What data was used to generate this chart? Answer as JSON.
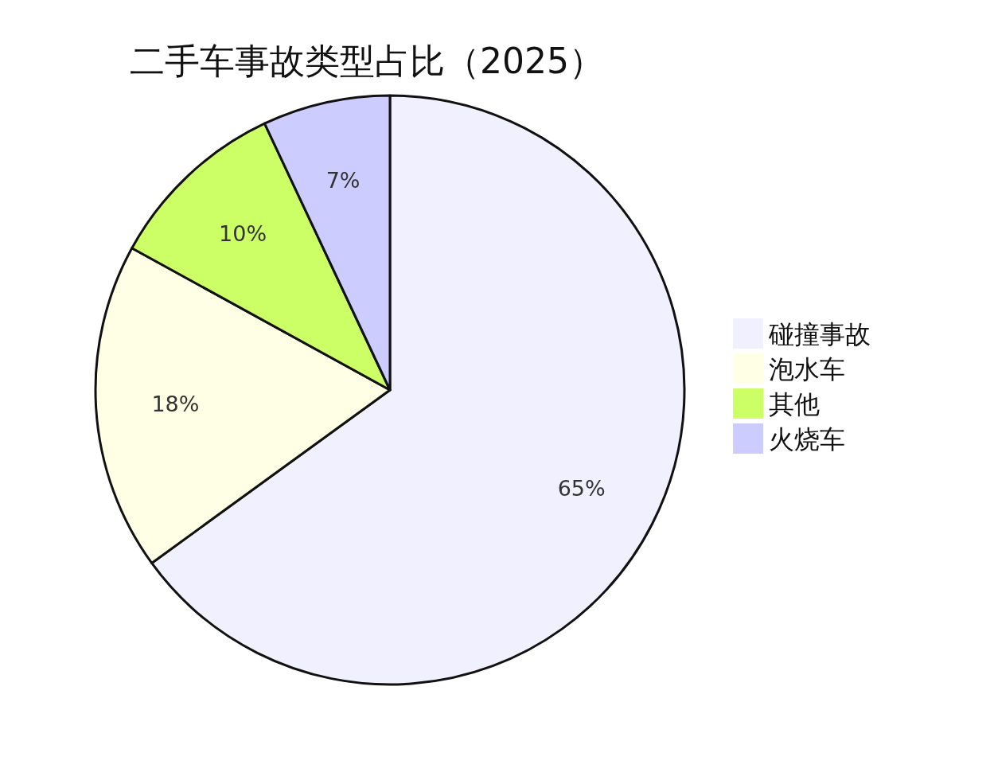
{
  "chart_data": {
    "type": "pie",
    "title": "二手车事故类型占比（2025）",
    "categories": [
      "碰撞事故",
      "泡水车",
      "其他",
      "火烧车"
    ],
    "values": [
      65,
      18,
      10,
      7
    ],
    "colors": [
      "#f0f0ff",
      "#ffffe6",
      "#ccff66",
      "#ccccff"
    ],
    "value_labels": [
      "65%",
      "18%",
      "10%",
      "7%"
    ],
    "legend": "right"
  }
}
